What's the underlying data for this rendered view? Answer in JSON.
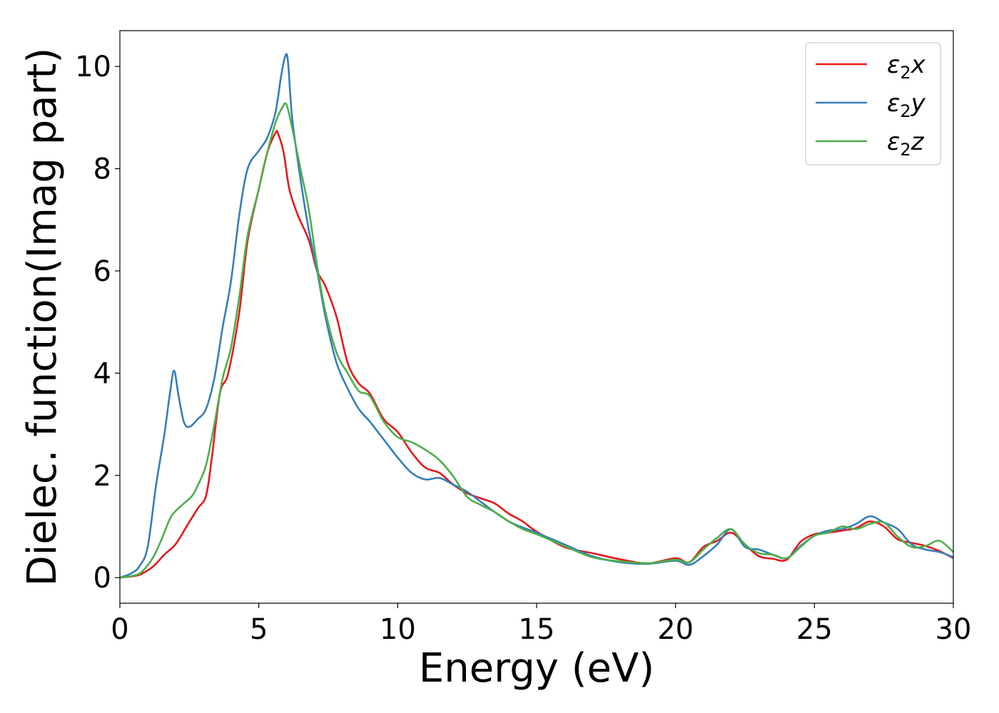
{
  "chart_data": {
    "type": "line",
    "xlabel": "Energy (eV)",
    "ylabel": "Dielec. function(Imag part)",
    "xlim": [
      0,
      30
    ],
    "ylim": [
      -0.5,
      10.7
    ],
    "xticks": [
      0,
      5,
      10,
      15,
      20,
      25,
      30
    ],
    "yticks": [
      0,
      2,
      4,
      6,
      8,
      10
    ],
    "grid": false,
    "legend_position": "top-right",
    "series": [
      {
        "name": "ε2x",
        "legend": {
          "main": "ε",
          "sub": "2",
          "tail": "x"
        },
        "color": "#e41a1c",
        "x": [
          0,
          0.5,
          0.8,
          1.2,
          1.6,
          2.0,
          2.4,
          2.8,
          3.1,
          3.3,
          3.6,
          3.9,
          4.3,
          4.6,
          5.0,
          5.3,
          5.6,
          5.7,
          5.9,
          6.1,
          6.4,
          6.8,
          7.1,
          7.4,
          7.8,
          8.2,
          8.6,
          9.0,
          9.5,
          10.0,
          10.5,
          11.0,
          11.5,
          12.0,
          12.5,
          13.0,
          13.5,
          14.0,
          14.5,
          15.0,
          16.0,
          17.0,
          18.0,
          19.0,
          20.0,
          20.5,
          21.0,
          21.5,
          22.0,
          22.5,
          23.0,
          23.5,
          24.0,
          24.5,
          25.0,
          25.5,
          26.0,
          26.5,
          27.0,
          27.5,
          28.0,
          28.5,
          29.0,
          29.5,
          30.0
        ],
        "y": [
          0,
          0.03,
          0.08,
          0.22,
          0.45,
          0.65,
          1.0,
          1.35,
          1.6,
          2.3,
          3.6,
          4.0,
          5.2,
          6.6,
          7.6,
          8.3,
          8.7,
          8.68,
          8.3,
          7.6,
          7.1,
          6.6,
          6.0,
          5.7,
          5.1,
          4.2,
          3.8,
          3.6,
          3.1,
          2.85,
          2.45,
          2.15,
          2.05,
          1.82,
          1.65,
          1.55,
          1.45,
          1.25,
          1.1,
          0.9,
          0.6,
          0.48,
          0.36,
          0.28,
          0.38,
          0.3,
          0.6,
          0.72,
          0.88,
          0.65,
          0.42,
          0.37,
          0.35,
          0.7,
          0.85,
          0.88,
          0.92,
          0.97,
          1.1,
          1.0,
          0.75,
          0.68,
          0.62,
          0.52,
          0.38
        ]
      },
      {
        "name": "ε2y",
        "legend": {
          "main": "ε",
          "sub": "2",
          "tail": "y"
        },
        "color": "#377eb8",
        "x": [
          0,
          0.4,
          0.7,
          1.0,
          1.3,
          1.6,
          1.8,
          1.95,
          2.1,
          2.3,
          2.5,
          2.8,
          3.1,
          3.4,
          3.7,
          4.0,
          4.3,
          4.6,
          5.0,
          5.3,
          5.6,
          5.8,
          5.95,
          6.05,
          6.2,
          6.5,
          6.8,
          7.1,
          7.4,
          7.8,
          8.2,
          8.6,
          9.0,
          9.5,
          10.0,
          10.5,
          11.0,
          11.5,
          12.0,
          12.5,
          13.0,
          13.5,
          14.0,
          14.5,
          15.0,
          16.0,
          17.0,
          18.0,
          19.0,
          20.0,
          20.5,
          21.0,
          21.5,
          22.0,
          22.5,
          23.0,
          23.5,
          24.0,
          24.5,
          25.0,
          25.5,
          26.0,
          26.5,
          27.0,
          27.5,
          28.0,
          28.5,
          29.0,
          29.5,
          30.0
        ],
        "y": [
          0,
          0.08,
          0.22,
          0.6,
          1.8,
          2.8,
          3.6,
          4.05,
          3.6,
          3.05,
          2.95,
          3.1,
          3.3,
          3.9,
          4.9,
          5.8,
          7.1,
          8.0,
          8.35,
          8.6,
          9.1,
          9.8,
          10.2,
          10.1,
          9.0,
          7.8,
          6.8,
          6.0,
          5.1,
          4.2,
          3.7,
          3.3,
          3.05,
          2.7,
          2.35,
          2.05,
          1.92,
          1.95,
          1.82,
          1.68,
          1.48,
          1.28,
          1.1,
          0.98,
          0.88,
          0.65,
          0.42,
          0.3,
          0.27,
          0.33,
          0.25,
          0.42,
          0.65,
          0.95,
          0.6,
          0.55,
          0.45,
          0.38,
          0.62,
          0.82,
          0.92,
          0.95,
          1.05,
          1.2,
          1.08,
          0.95,
          0.65,
          0.55,
          0.5,
          0.4
        ]
      },
      {
        "name": "ε2z",
        "legend": {
          "main": "ε",
          "sub": "2",
          "tail": "z"
        },
        "color": "#4daf4a",
        "x": [
          0,
          0.5,
          0.8,
          1.2,
          1.5,
          1.8,
          2.0,
          2.3,
          2.6,
          2.8,
          3.1,
          3.4,
          3.7,
          4.0,
          4.3,
          4.6,
          5.0,
          5.3,
          5.6,
          5.85,
          6.0,
          6.2,
          6.5,
          6.8,
          7.1,
          7.4,
          7.8,
          8.2,
          8.6,
          9.0,
          9.5,
          10.0,
          10.5,
          11.0,
          11.5,
          12.0,
          12.5,
          13.0,
          13.5,
          14.0,
          14.5,
          15.0,
          16.0,
          17.0,
          18.0,
          19.0,
          20.0,
          20.5,
          21.0,
          21.5,
          22.0,
          22.5,
          23.0,
          23.5,
          24.0,
          24.5,
          25.0,
          25.5,
          26.0,
          26.5,
          27.0,
          27.5,
          28.0,
          28.5,
          29.0,
          29.5,
          30.0
        ],
        "y": [
          0,
          0.04,
          0.12,
          0.4,
          0.75,
          1.15,
          1.3,
          1.45,
          1.6,
          1.8,
          2.2,
          3.0,
          3.9,
          4.5,
          5.5,
          6.7,
          7.6,
          8.3,
          8.9,
          9.2,
          9.25,
          8.8,
          8.0,
          7.2,
          6.1,
          5.2,
          4.4,
          4.0,
          3.65,
          3.55,
          3.05,
          2.75,
          2.65,
          2.5,
          2.3,
          1.98,
          1.58,
          1.42,
          1.28,
          1.1,
          0.95,
          0.85,
          0.62,
          0.4,
          0.32,
          0.28,
          0.35,
          0.3,
          0.55,
          0.78,
          0.95,
          0.65,
          0.48,
          0.45,
          0.38,
          0.6,
          0.82,
          0.88,
          1.0,
          0.95,
          1.05,
          1.08,
          0.8,
          0.6,
          0.62,
          0.72,
          0.5
        ]
      }
    ]
  }
}
